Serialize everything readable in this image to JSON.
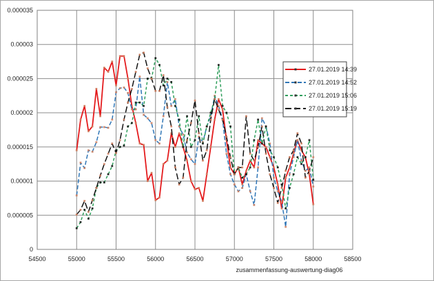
{
  "chart_data": {
    "type": "line",
    "xlabel": "zusammenfassung-auswertung-diag06",
    "ylabel": "",
    "xlim": [
      54500,
      58500
    ],
    "ylim": [
      0,
      3.5e-05
    ],
    "xticks": [
      54500,
      55000,
      55500,
      56000,
      56500,
      57000,
      57500,
      58000,
      58500
    ],
    "xtick_labels": [
      "54500",
      "55000",
      "55500",
      "56000",
      "56500",
      "57000",
      "57500",
      "58000",
      "58500"
    ],
    "yticks": [
      0,
      5e-06,
      1e-05,
      1.5e-05,
      2e-05,
      2.5e-05,
      3e-05,
      3.5e-05
    ],
    "ytick_labels": [
      "0",
      "0.000005",
      "0.00001",
      "0.000015",
      "0.00002",
      "0.000025",
      "0.00003",
      "0.000035"
    ],
    "grid": true,
    "legend_position": "right",
    "series": [
      {
        "name": "27.01.2019 14:39",
        "color": "#e41a1c",
        "dash": "solid",
        "x": [
          55000,
          55050,
          55100,
          55150,
          55200,
          55250,
          55300,
          55350,
          55400,
          55450,
          55500,
          55550,
          55600,
          55650,
          55700,
          55750,
          55800,
          55850,
          55900,
          55950,
          56000,
          56050,
          56100,
          56150,
          56200,
          56250,
          56300,
          56350,
          56400,
          56450,
          56500,
          56550,
          56600,
          56650,
          56700,
          56750,
          56800,
          56850,
          56900,
          56950,
          57000,
          57050,
          57100,
          57150,
          57200,
          57250,
          57300,
          57350,
          57400,
          57450,
          57500,
          57550,
          57600,
          57650,
          57700,
          57750,
          57800,
          57850,
          57900,
          57950,
          58000
        ],
        "y": [
          1.45e-05,
          1.9e-05,
          2.1e-05,
          1.73e-05,
          1.8e-05,
          2.35e-05,
          1.95e-05,
          2.66e-05,
          2.6e-05,
          2.75e-05,
          2.4e-05,
          2.83e-05,
          2.83e-05,
          2.5e-05,
          2.1e-05,
          1.85e-05,
          1.55e-05,
          1.53e-05,
          1e-05,
          1.12e-05,
          7.2e-06,
          7.6e-06,
          1.25e-05,
          1.3e-05,
          1.7e-05,
          1.5e-05,
          1.7e-05,
          1.5e-05,
          1.3e-05,
          1e-05,
          8.8e-06,
          9e-06,
          7.1e-06,
          1.1e-05,
          1.5e-05,
          1.9e-05,
          2.2e-05,
          2.05e-05,
          1.6e-05,
          1.2e-05,
          1.1e-05,
          1.2e-05,
          9.5e-06,
          1.15e-05,
          1.3e-05,
          1.2e-05,
          1.6e-05,
          1.55e-05,
          1.5e-05,
          1.35e-05,
          1.2e-05,
          9.5e-06,
          6e-06,
          1.05e-05,
          1.2e-05,
          1.4e-05,
          1.6e-05,
          1.45e-05,
          1.35e-05,
          1.1e-05,
          6.6e-06
        ]
      },
      {
        "name": "27.01.2019 14:52",
        "color": "#2e75b6",
        "dash": "6,3",
        "x": [
          55000,
          55050,
          55100,
          55150,
          55200,
          55250,
          55300,
          55350,
          55400,
          55450,
          55500,
          55550,
          55600,
          55650,
          55700,
          55750,
          55800,
          55850,
          55900,
          55950,
          56000,
          56050,
          56100,
          56150,
          56200,
          56250,
          56300,
          56350,
          56400,
          56450,
          56500,
          56550,
          56600,
          56650,
          56700,
          56750,
          56800,
          56850,
          56900,
          56950,
          57000,
          57050,
          57100,
          57150,
          57200,
          57250,
          57300,
          57350,
          57400,
          57450,
          57500,
          57550,
          57600,
          57650,
          57700,
          57750,
          57800,
          57850,
          57900,
          57950,
          58000
        ],
        "y": [
          7.9e-06,
          1.27e-05,
          1.19e-05,
          1.45e-05,
          1.43e-05,
          1.57e-05,
          1.79e-05,
          1.79e-05,
          1.78e-05,
          1.9e-05,
          2.3e-05,
          2.36e-05,
          2.37e-05,
          2.29e-05,
          2.05e-05,
          2.05e-05,
          2.53e-05,
          1.97e-05,
          1.92e-05,
          1.85e-05,
          1.6e-05,
          1.55e-05,
          1.95e-05,
          2.45e-05,
          2.1e-05,
          2.2e-05,
          1.8e-05,
          1.68e-05,
          1.42e-05,
          1.32e-05,
          1.25e-05,
          1.65e-05,
          1.57e-05,
          1.8e-05,
          1.95e-05,
          2.25e-05,
          2.1e-05,
          1.9e-05,
          1.4e-05,
          1.1e-05,
          9.5e-06,
          8.5e-06,
          9e-06,
          1.1e-05,
          8.5e-06,
          6.5e-06,
          1.2e-05,
          1.92e-05,
          1.8e-05,
          1.55e-05,
          1.05e-05,
          8.5e-06,
          7e-06,
          3.3e-06,
          1.1e-05,
          1.35e-05,
          1.6e-05,
          1.3e-05,
          1.15e-05,
          1.2e-05,
          9.2e-06
        ]
      },
      {
        "name": "27.01.2019 15:06",
        "color": "#2e9e5b",
        "dash": "4,3",
        "x": [
          55000,
          55050,
          55100,
          55150,
          55200,
          55250,
          55300,
          55350,
          55400,
          55450,
          55500,
          55550,
          55600,
          55650,
          55700,
          55750,
          55800,
          55850,
          55900,
          55950,
          56000,
          56050,
          56100,
          56150,
          56200,
          56250,
          56300,
          56350,
          56400,
          56450,
          56500,
          56550,
          56600,
          56650,
          56700,
          56750,
          56800,
          56850,
          56900,
          56950,
          57000,
          57050,
          57100,
          57150,
          57200,
          57250,
          57300,
          57350,
          57400,
          57450,
          57500,
          57550,
          57600,
          57650,
          57700,
          57750,
          57800,
          57850,
          57900,
          57950,
          58000
        ],
        "y": [
          3.1e-06,
          4e-06,
          5.8e-06,
          4.5e-06,
          6e-06,
          9e-06,
          9.8e-06,
          9.8e-06,
          1.1e-05,
          1.22e-05,
          1.45e-05,
          1.5e-05,
          1.52e-05,
          1.8e-05,
          1.85e-05,
          2.15e-05,
          2.15e-05,
          2.1e-05,
          2.5e-05,
          2.5e-05,
          2.8e-05,
          2.7e-05,
          2.4e-05,
          2.5e-05,
          2.45e-05,
          2.1e-05,
          1.9e-05,
          1.5e-05,
          1.95e-05,
          1.5e-05,
          1.6e-05,
          1.95e-05,
          1.55e-05,
          1.8e-05,
          2e-05,
          2.2e-05,
          2.7e-05,
          2.1e-05,
          2e-05,
          1.8e-05,
          1.1e-05,
          1.2e-05,
          1.05e-05,
          1.1e-05,
          1.2e-05,
          1.6e-05,
          1.9e-05,
          1.55e-05,
          1.8e-05,
          1.45e-05,
          1.35e-05,
          1.2e-05,
          9.5e-06,
          6e-06,
          9e-06,
          1.1e-05,
          1.35e-05,
          1.25e-05,
          1.35e-05,
          1.6e-05,
          1.02e-05
        ]
      },
      {
        "name": "27.01.2019 15:19",
        "color": "#111111",
        "dash": "9,4",
        "x": [
          55000,
          55050,
          55100,
          55150,
          55200,
          55250,
          55300,
          55350,
          55400,
          55450,
          55500,
          55550,
          55600,
          55650,
          55700,
          55750,
          55800,
          55850,
          55900,
          55950,
          56000,
          56050,
          56100,
          56150,
          56200,
          56250,
          56300,
          56350,
          56400,
          56450,
          56500,
          56550,
          56600,
          56650,
          56700,
          56750,
          56800,
          56850,
          56900,
          56950,
          57000,
          57050,
          57100,
          57150,
          57200,
          57250,
          57300,
          57350,
          57400,
          57450,
          57500,
          57550,
          57600,
          57650,
          57700,
          57750,
          57800,
          57850,
          57900,
          57950,
          58000
        ],
        "y": [
          5.1e-06,
          5.8e-06,
          7.1e-06,
          5.5e-06,
          7.2e-06,
          9e-06,
          1.08e-05,
          1.25e-05,
          1.4e-05,
          1.55e-05,
          1.41e-05,
          1.6e-05,
          1.9e-05,
          2.15e-05,
          2.35e-05,
          2.6e-05,
          2.85e-05,
          2.88e-05,
          2.65e-05,
          2.5e-05,
          2.32e-05,
          2.32e-05,
          2.55e-05,
          2.08e-05,
          1.8e-05,
          1.2e-05,
          9.5e-06,
          1.05e-05,
          1.6e-05,
          1.85e-05,
          2.18e-05,
          1.7e-05,
          1.3e-05,
          1.45e-05,
          1.9e-05,
          2.2e-05,
          2.05e-05,
          1.9e-05,
          1.65e-05,
          1.35e-05,
          1.1e-05,
          1.2e-05,
          1.2e-05,
          1.95e-05,
          1.4e-05,
          1.3e-05,
          1.5e-05,
          1.8e-05,
          1.4e-05,
          1.1e-05,
          9e-06,
          6.8e-06,
          9e-06,
          1.15e-05,
          1.35e-05,
          1.45e-05,
          1.7e-05,
          1.55e-05,
          1.05e-05,
          1.15e-05,
          1.35e-05
        ]
      }
    ]
  }
}
